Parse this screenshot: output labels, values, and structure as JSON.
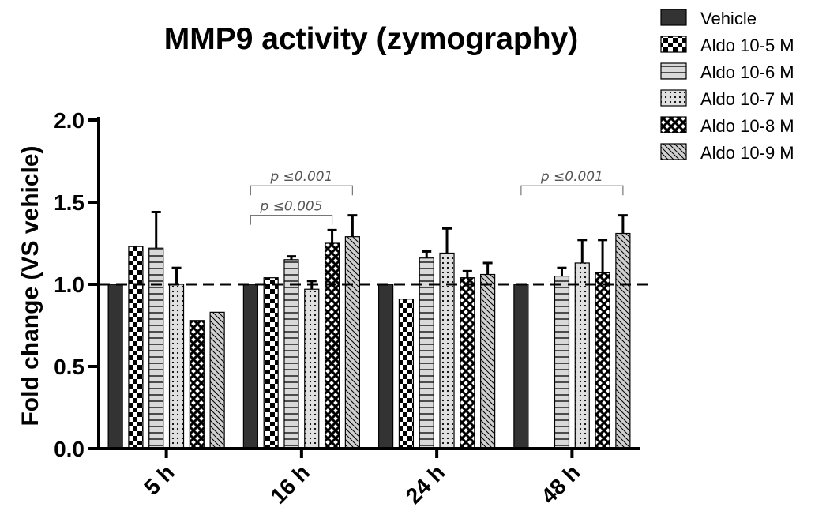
{
  "chart_data": {
    "type": "bar",
    "title": "MMP9 activity (zymography)",
    "xlabel": "",
    "ylabel": "Fold change (VS vehicle)",
    "ylim": [
      0,
      2
    ],
    "yticks": [
      "0.0",
      "0.5",
      "1.0",
      "1.5",
      "2.0"
    ],
    "categories": [
      "5 h",
      "16 h",
      "24 h",
      "48 h"
    ],
    "reference_line": 1.0,
    "legend_position": "top-right",
    "series": [
      {
        "name": "Vehicle",
        "pattern": "solid",
        "values": [
          1.0,
          1.0,
          1.0,
          1.0
        ],
        "errors": [
          0,
          0,
          0,
          0
        ]
      },
      {
        "name": "Aldo 10-5 M",
        "pattern": "checker",
        "values": [
          1.23,
          1.04,
          0.91,
          null
        ],
        "errors": [
          0,
          0,
          0,
          0
        ]
      },
      {
        "name": "Aldo 10-6 M",
        "pattern": "hlines",
        "values": [
          1.22,
          1.15,
          1.16,
          1.05
        ],
        "errors": [
          0.22,
          0.02,
          0.04,
          0.05
        ]
      },
      {
        "name": "Aldo 10-7 M",
        "pattern": "dots",
        "values": [
          1.0,
          0.97,
          1.19,
          1.13
        ],
        "errors": [
          0.1,
          0.05,
          0.15,
          0.14
        ]
      },
      {
        "name": "Aldo 10-8 M",
        "pattern": "crosshatch",
        "values": [
          0.78,
          1.25,
          1.04,
          1.07
        ],
        "errors": [
          0,
          0.08,
          0.04,
          0.2
        ]
      },
      {
        "name": "Aldo 10-9 M",
        "pattern": "diag",
        "values": [
          0.83,
          1.29,
          1.06,
          1.31
        ],
        "errors": [
          0,
          0.13,
          0.07,
          0.11
        ]
      }
    ],
    "annotations": [
      {
        "text": "p ≤0.001",
        "group": "16 h",
        "from_series": 0,
        "to_series": 5,
        "y": 1.6
      },
      {
        "text": "p ≤0.005",
        "group": "16 h",
        "from_series": 0,
        "to_series": 4,
        "y": 1.42
      },
      {
        "text": "p ≤0.001",
        "group": "48 h",
        "from_series": 0,
        "to_series": 5,
        "y": 1.6
      }
    ],
    "colors": {
      "vehicle": "#333333",
      "fill_light": "#d9d9d9",
      "ink": "#000000"
    }
  }
}
